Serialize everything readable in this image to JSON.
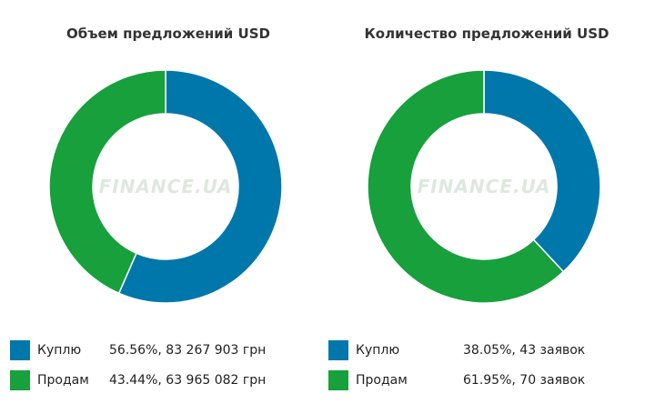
{
  "colors": {
    "buy": "#0077aa",
    "sell": "#17a03c"
  },
  "watermark": "FINANCE.UA",
  "chart_data": [
    {
      "type": "pie",
      "title": "Объем предложений USD",
      "categories": [
        "Куплю",
        "Продам"
      ],
      "values": [
        56.56,
        43.44
      ],
      "legend_values": [
        "56.56%, 83 267 903 грн",
        "43.44%, 63 965 082 грн"
      ],
      "legend": "bottom"
    },
    {
      "type": "pie",
      "title": "Количество предложений USD",
      "categories": [
        "Куплю",
        "Продам"
      ],
      "values": [
        38.05,
        61.95
      ],
      "legend_values": [
        "38.05%, 43 заявок",
        "61.95%, 70 заявок"
      ],
      "legend": "bottom"
    }
  ]
}
